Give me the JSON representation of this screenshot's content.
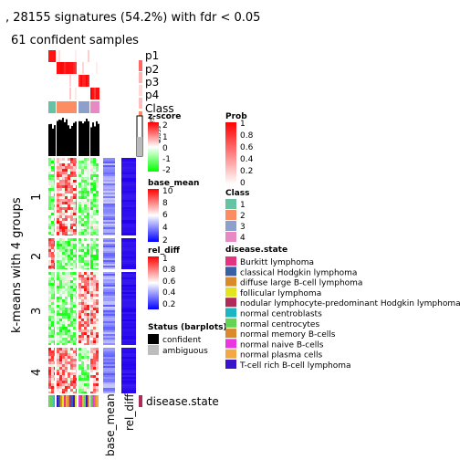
{
  "chart_data": {
    "type": "heatmap",
    "title": ", 28155 signatures (54.2%) with fdr < 0.05",
    "subtitle": "61 confident samples",
    "ylabel": "k-means with 4 groups",
    "row_groups": [
      "1",
      "2",
      "3",
      "4"
    ],
    "top_annotations": [
      "p1",
      "p2",
      "p3",
      "p4",
      "Class"
    ],
    "silhouette_label": "Silhouette\nscore",
    "column_labels": [
      "base_mean",
      "rel_diff"
    ],
    "bottom_annotation": "disease.state",
    "legends": {
      "prob": {
        "title": "Prob",
        "ticks": [
          "1",
          "0.8",
          "0.6",
          "0.4",
          "0.2",
          "0"
        ],
        "colors": [
          "#ff0000",
          "#ffffff"
        ]
      },
      "zscore": {
        "title": "z-score",
        "ticks": [
          "2",
          "1",
          "0",
          "-1",
          "-2"
        ],
        "colors": [
          "#ff0000",
          "#ffffff",
          "#00ff00"
        ]
      },
      "base_mean": {
        "title": "base_mean",
        "ticks": [
          "10",
          "8",
          "6",
          "4",
          "2"
        ],
        "colors": [
          "#ff0000",
          "#ffffff",
          "#0000ff"
        ]
      },
      "rel_diff": {
        "title": "rel_diff",
        "ticks": [
          "1",
          "0.8",
          "0.6",
          "0.4",
          "0.2"
        ],
        "colors": [
          "#ff0000",
          "#ffffff",
          "#0000ff"
        ]
      },
      "class": {
        "title": "Class",
        "items": [
          {
            "label": "1",
            "color": "#66c2a5"
          },
          {
            "label": "2",
            "color": "#fc8d62"
          },
          {
            "label": "3",
            "color": "#8da0cb"
          },
          {
            "label": "4",
            "color": "#e78ac3"
          }
        ]
      },
      "disease_state": {
        "title": "disease.state",
        "items": [
          {
            "label": "Burkitt lymphoma",
            "color": "#e6337f"
          },
          {
            "label": "classical Hodgkin lymphoma",
            "color": "#3a5ea8"
          },
          {
            "label": "diffuse large B-cell lymphoma",
            "color": "#d98a2b"
          },
          {
            "label": "follicular lymphoma",
            "color": "#e3e31e"
          },
          {
            "label": "nodular lymphocyte-predominant Hodgkin lymphoma",
            "color": "#b02a57"
          },
          {
            "label": "normal centroblasts",
            "color": "#1db5c4"
          },
          {
            "label": "normal centrocytes",
            "color": "#62d353"
          },
          {
            "label": "normal memory B-cells",
            "color": "#d98a2b"
          },
          {
            "label": "normal naive B-cells",
            "color": "#e836e0"
          },
          {
            "label": "normal plasma cells",
            "color": "#f2a845"
          },
          {
            "label": "T-cell rich B-cell lymphoma",
            "color": "#3a14c8"
          }
        ]
      },
      "status": {
        "title": "Status (barplots)",
        "items": [
          {
            "label": "confident",
            "color": "#000000"
          },
          {
            "label": "ambiguous",
            "color": "#bdbdbd"
          }
        ]
      }
    }
  }
}
